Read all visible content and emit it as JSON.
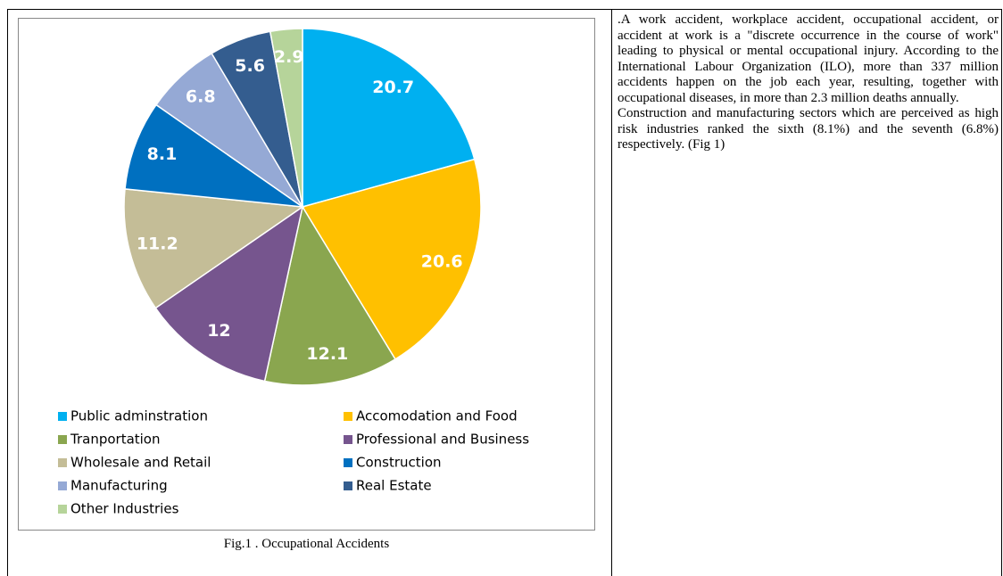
{
  "chart_data": {
    "type": "pie",
    "categories": [
      "Public adminstration",
      "Accomodation and Food",
      "Tranportation",
      "Professional and Business",
      "Wholesale and Retail",
      "Construction",
      "Manufacturing",
      "Real Estate",
      "Other Industries"
    ],
    "values": [
      20.7,
      20.6,
      12.1,
      12,
      11.2,
      8.1,
      6.8,
      5.6,
      2.9
    ],
    "colors": [
      "#00b0f0",
      "#ffc000",
      "#8aa64f",
      "#76558e",
      "#c4bd97",
      "#0070c0",
      "#95a9d5",
      "#345d8f",
      "#b6d49a"
    ],
    "legend": "bottom"
  },
  "caption": "Fig.1 . Occupational Accidents",
  "paragraphs": [
    ".A work accident, workplace accident, occupational accident, or accident at work is a \"discrete occurrence in the course of work\" leading to physical or mental occupational injury. According to the International Labour Organization (ILO), more than 337 million accidents happen on the job each year, resulting, together with occupational diseases, in more than 2.3 million deaths annually.",
    "Construction and manufacturing sectors which are perceived as high risk industries ranked the sixth (8.1%) and the seventh (6.8%) respectively. (Fig 1)"
  ]
}
